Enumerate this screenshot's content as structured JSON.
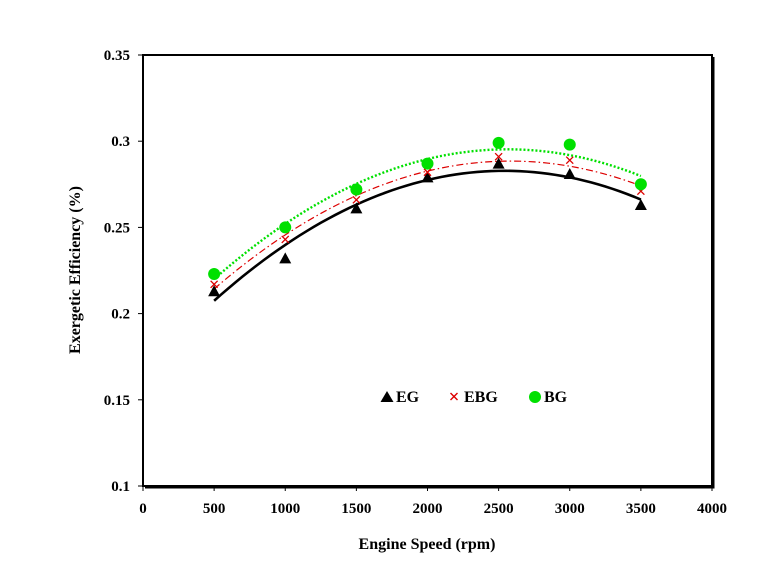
{
  "chart_data": {
    "type": "scatter",
    "title": "",
    "xlabel": "Engine Speed (rpm)",
    "ylabel": "Exergetic  Efficiency (%)",
    "xlim": [
      0,
      4000
    ],
    "ylim": [
      0.1,
      0.35
    ],
    "x_ticks": [
      0,
      500,
      1000,
      1500,
      2000,
      2500,
      3000,
      3500,
      4000
    ],
    "x_tick_labels": [
      "0",
      "500",
      "1000",
      "1500",
      "2000",
      "2500",
      "3000",
      "3500",
      "4000"
    ],
    "y_ticks": [
      0.1,
      0.15,
      0.2,
      0.25,
      0.3,
      0.35
    ],
    "y_tick_labels": [
      "0.1",
      "0.15",
      "0.2",
      "0.25",
      "0.3",
      "0.35"
    ],
    "grid": false,
    "legend_position": "inside-lower-center",
    "x": [
      500,
      1000,
      1500,
      2000,
      2500,
      3000,
      3500
    ],
    "series": [
      {
        "name": "EG",
        "marker": "triangle",
        "color": "#000000",
        "trendline_style": "solid",
        "values": [
          0.213,
          0.232,
          0.261,
          0.279,
          0.287,
          0.281,
          0.263
        ]
      },
      {
        "name": "EBG",
        "marker": "x",
        "color": "#dd0000",
        "trendline_style": "dash-dot",
        "values": [
          0.217,
          0.243,
          0.266,
          0.282,
          0.291,
          0.289,
          0.271
        ]
      },
      {
        "name": "BG",
        "marker": "circle",
        "color": "#00e000",
        "trendline_style": "dotted",
        "values": [
          0.223,
          0.25,
          0.272,
          0.287,
          0.299,
          0.298,
          0.275
        ]
      }
    ]
  }
}
